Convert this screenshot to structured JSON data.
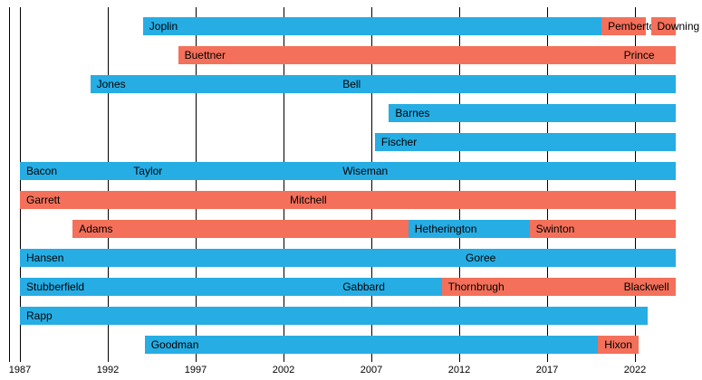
{
  "chart_data": {
    "type": "timeline",
    "title": "",
    "x_axis": {
      "min": 1987,
      "max": 2024.3,
      "ticks": [
        "1987",
        "1992",
        "1997",
        "2002",
        "2007",
        "2012",
        "2017",
        "2022"
      ],
      "tick_interval": 5
    },
    "colors": {
      "blue": "#26ade4",
      "red": "#f4705a",
      "gridline": "#000000",
      "text": "#000000",
      "background": "#ffffff"
    },
    "legend": [],
    "rows": [
      {
        "segments": [
          {
            "label": "Joplin",
            "start": 1994,
            "end": 2020.1,
            "color": "blue"
          },
          {
            "label": "Pemberton",
            "start": 2020.1,
            "end": 2022.6,
            "color": "red"
          },
          {
            "label": "Downing",
            "start": 2022.9,
            "end": 2024.3,
            "color": "red"
          }
        ]
      },
      {
        "segments": [
          {
            "label": "Buettner",
            "start": 1996,
            "end": 2021,
            "color": "red"
          },
          {
            "label": "Prince",
            "start": 2021,
            "end": 2024.3,
            "color": "red"
          }
        ]
      },
      {
        "segments": [
          {
            "label": "Jones",
            "start": 1991,
            "end": 2005,
            "color": "blue"
          },
          {
            "label": "Bell",
            "start": 2005,
            "end": 2024.3,
            "color": "blue"
          }
        ]
      },
      {
        "segments": [
          {
            "label": "Barnes",
            "start": 2008,
            "end": 2024.3,
            "color": "blue"
          }
        ]
      },
      {
        "segments": [
          {
            "label": "Fischer",
            "start": 2007.2,
            "end": 2024.3,
            "color": "blue"
          }
        ]
      },
      {
        "segments": [
          {
            "label": "Bacon",
            "start": 1987,
            "end": 1993.1,
            "color": "blue"
          },
          {
            "label": "Taylor",
            "start": 1993.1,
            "end": 2005,
            "color": "blue"
          },
          {
            "label": "Wiseman",
            "start": 2005,
            "end": 2024.3,
            "color": "blue"
          }
        ]
      },
      {
        "segments": [
          {
            "label": "Garrett",
            "start": 1987,
            "end": 2002,
            "color": "red"
          },
          {
            "label": "Mitchell",
            "start": 2002,
            "end": 2024.3,
            "color": "red"
          }
        ]
      },
      {
        "segments": [
          {
            "label": "Adams",
            "start": 1990,
            "end": 2009.1,
            "color": "red"
          },
          {
            "label": "Hetherington",
            "start": 2009.1,
            "end": 2016,
            "color": "blue"
          },
          {
            "label": "Swinton",
            "start": 2016,
            "end": 2024.3,
            "color": "red"
          }
        ]
      },
      {
        "segments": [
          {
            "label": "Hansen",
            "start": 1987,
            "end": 2012,
            "color": "blue"
          },
          {
            "label": "Goree",
            "start": 2012,
            "end": 2024.3,
            "color": "blue"
          }
        ]
      },
      {
        "segments": [
          {
            "label": "Stubberfield",
            "start": 1987,
            "end": 2005,
            "color": "blue"
          },
          {
            "label": "Gabbard",
            "start": 2005,
            "end": 2011,
            "color": "blue"
          },
          {
            "label": "Thornbrugh",
            "start": 2011,
            "end": 2021,
            "color": "red"
          },
          {
            "label": "Blackwell",
            "start": 2021,
            "end": 2024.3,
            "color": "red"
          }
        ]
      },
      {
        "segments": [
          {
            "label": "Rapp",
            "start": 1987,
            "end": 2022.7,
            "color": "blue"
          }
        ]
      },
      {
        "segments": [
          {
            "label": "Goodman",
            "start": 1994.1,
            "end": 2019.9,
            "color": "blue"
          },
          {
            "label": "Hixon",
            "start": 2019.9,
            "end": 2022.2,
            "color": "red"
          }
        ]
      }
    ]
  }
}
